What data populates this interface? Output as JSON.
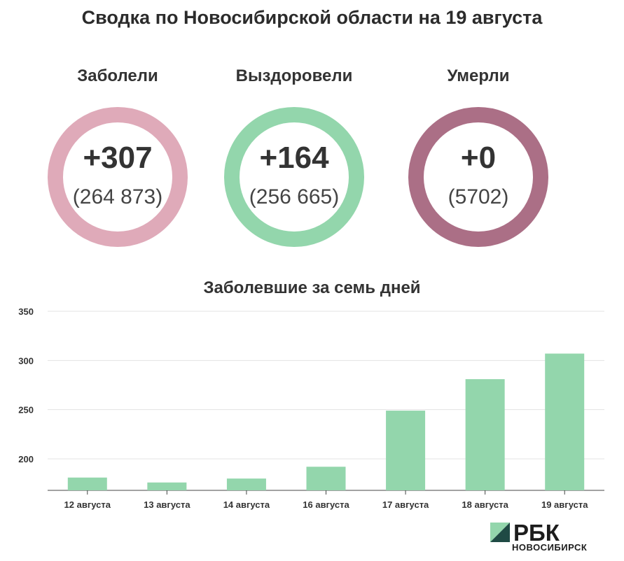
{
  "title": "Сводка по Новосибирской области на 19 августа",
  "stats": [
    {
      "label": "Заболели",
      "delta": "+307",
      "total": "(264 873)",
      "color": "#dfaab9"
    },
    {
      "label": "Выздоровели",
      "delta": "+164",
      "total": "(256 665)",
      "color": "#93d6ac"
    },
    {
      "label": "Умерли",
      "delta": "+0",
      "total": "(5702)",
      "color": "#ab6f86"
    }
  ],
  "chart_data": {
    "type": "bar",
    "title": "Заболевшие за семь дней",
    "categories": [
      "12 августа",
      "13 августа",
      "14 августа",
      "16 августа",
      "17 августа",
      "18 августа",
      "19 августа"
    ],
    "values": [
      181,
      176,
      180,
      192,
      249,
      281,
      307
    ],
    "ylim": [
      168,
      350
    ],
    "yticks": [
      200,
      250,
      300,
      350
    ],
    "grid": true,
    "bar_color": "#93d6ac"
  },
  "logo": {
    "brand": "РБК",
    "city": "НОВОСИБИРСК"
  }
}
